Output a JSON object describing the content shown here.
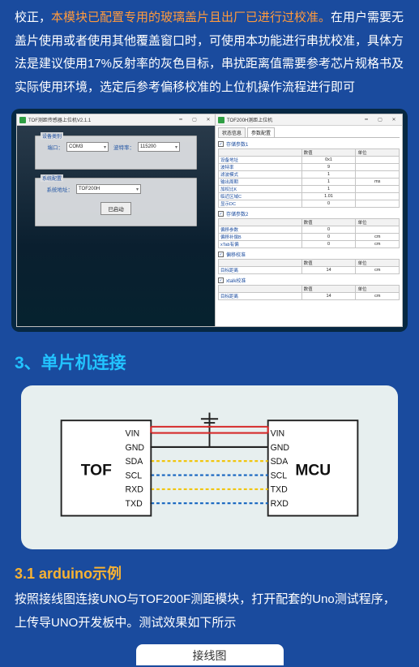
{
  "intro": {
    "line1_prefix": "校正，",
    "line1_hl": "本模块已配置专用的玻璃盖片且出厂已进行过校准。",
    "line1_suffix": "在用户需要无盖片使用或者使用其他覆盖窗口时，可使用本功能进行串扰校准，具体方法是建议使用17%反射率的灰色目标，串扰距离值需要参考芯片规格书及实际使用环境，选定后参考偏移校准的上位机操作流程进行即可"
  },
  "section_mcu": "3、单片机连接",
  "section_arduino_title": "3.1 arduino示例",
  "section_arduino_text": "按照接线图连接UNO与TOF200F测距模块，打开配套的Uno测试程序，上传导UNO开发板中。测试效果如下所示",
  "wire_fig_label": "接线图",
  "left_app": {
    "title": "TOF测距传感器上位机V2.1.1",
    "panel1_title": "设备类别",
    "panel2_title": "系统配置",
    "port_label": "端口：",
    "port_value": "COM3",
    "baud_label": "波特率：",
    "baud_value": "115200",
    "sysaddr_label": "系统地址：",
    "sysaddr_value": "TOF200H",
    "start_btn": "已启动"
  },
  "right_app": {
    "title": "TOF200H测距上位机",
    "tabs": [
      "状态信息",
      "参数配置"
    ],
    "active_tab": 1,
    "group1": {
      "header": "存储参数1",
      "cols": [
        "",
        "数值",
        "单位"
      ],
      "rows": [
        [
          "设备地址",
          "0x1",
          ""
        ],
        [
          "波特率",
          "9",
          ""
        ],
        [
          "滤波模式",
          "1",
          ""
        ],
        [
          "输出周期",
          "1",
          "ms"
        ],
        [
          "加权比K",
          "1",
          ""
        ],
        [
          "临近区域C",
          "1.01",
          ""
        ],
        [
          "显示DC",
          "0",
          ""
        ]
      ]
    },
    "group2": {
      "header": "存储参数2",
      "cols": [
        "",
        "数值",
        "单位"
      ],
      "rows": [
        [
          "偏移参数",
          "0",
          ""
        ],
        [
          "偏移补偿B",
          "0",
          "cm"
        ],
        [
          "xTab有偏",
          "0",
          "cm"
        ]
      ]
    },
    "group3": {
      "header": "偏移校准",
      "cols": [
        "",
        "数值",
        "单位"
      ],
      "rows": [
        [
          "目标距离",
          "14",
          "cm"
        ]
      ]
    },
    "group4": {
      "header": "xtalk校准",
      "cols": [
        "",
        "数值",
        "单位"
      ],
      "rows": [
        [
          "目标距离",
          "14",
          "cm"
        ]
      ]
    }
  },
  "wiring": {
    "left_chip": "TOF",
    "right_chip": "MCU",
    "pins": [
      "VIN",
      "GND",
      "SDA",
      "SCL",
      "RXD",
      "TXD"
    ],
    "right_pins": [
      "VIN",
      "GND",
      "SDA",
      "SCL",
      "TXD",
      "RXD"
    ],
    "wire_colors": [
      "#d62c2c",
      "#222222",
      "#f2c300",
      "#1565c0",
      "#f2c300",
      "#1565c0"
    ],
    "wire_dash": [
      "",
      "",
      "4 3",
      "4 3",
      "4 3",
      "4 3"
    ]
  }
}
